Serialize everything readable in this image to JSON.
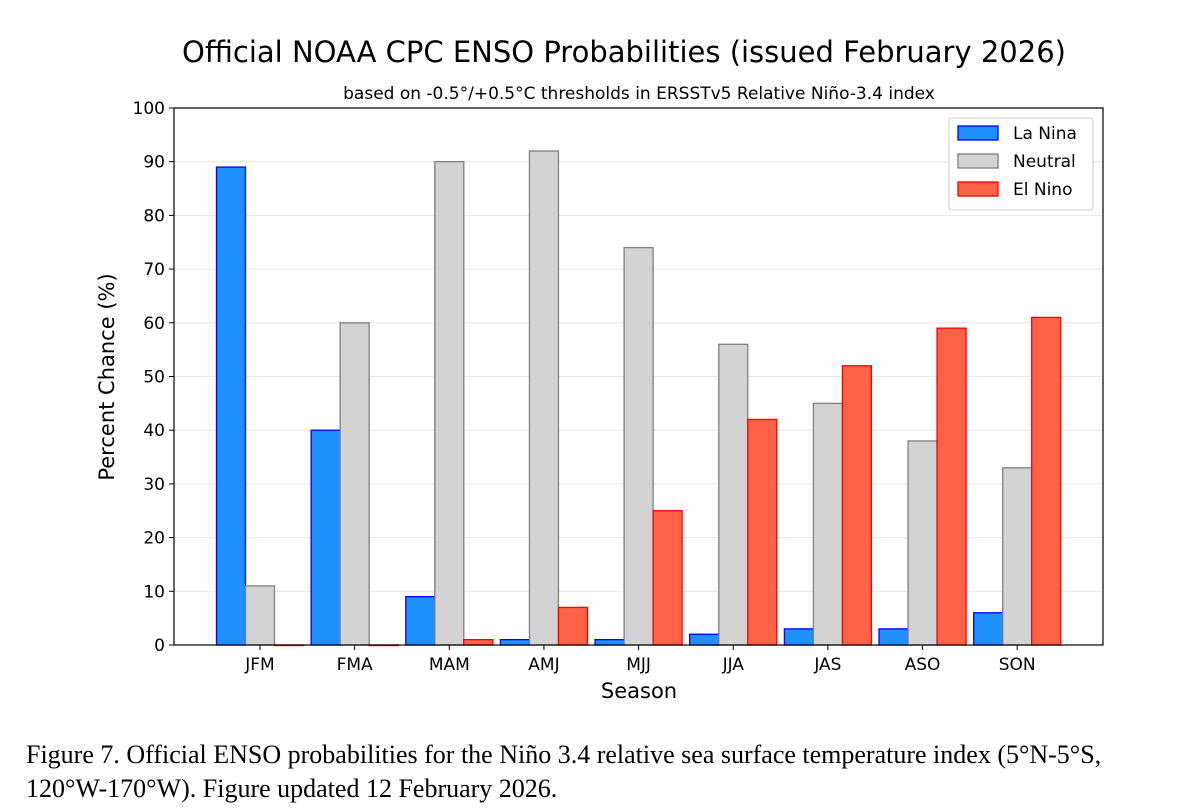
{
  "chart_data": {
    "type": "bar",
    "title": "Official NOAA CPC ENSO Probabilities (issued February 2026)",
    "subtitle": "based on -0.5°/+0.5°C thresholds in ERSSTv5 Relative Niño-3.4 index",
    "xlabel": "Season",
    "ylabel": "Percent Chance (%)",
    "ylim": [
      0,
      100
    ],
    "yticks": [
      0,
      10,
      20,
      30,
      40,
      50,
      60,
      70,
      80,
      90,
      100
    ],
    "grid": "horizontal",
    "legend": "top-right",
    "categories": [
      "JFM",
      "FMA",
      "MAM",
      "AMJ",
      "MJJ",
      "JJA",
      "JAS",
      "ASO",
      "SON"
    ],
    "series": [
      {
        "name": "La Nina",
        "color": "#1e90ff",
        "edge": "#0000ff",
        "values": [
          89,
          40,
          9,
          1,
          1,
          2,
          3,
          3,
          6
        ]
      },
      {
        "name": "Neutral",
        "color": "#d3d3d3",
        "edge": "#808080",
        "values": [
          11,
          60,
          90,
          92,
          74,
          56,
          45,
          38,
          33
        ]
      },
      {
        "name": "El Nino",
        "color": "#ff6347",
        "edge": "#ff0000",
        "values": [
          0,
          0,
          1,
          7,
          25,
          42,
          52,
          59,
          61
        ]
      }
    ]
  },
  "caption": "Figure 7. Official ENSO probabilities for the Niño 3.4 relative sea surface temperature index (5°N-5°S, 120°W-170°W). Figure updated 12 February 2026."
}
